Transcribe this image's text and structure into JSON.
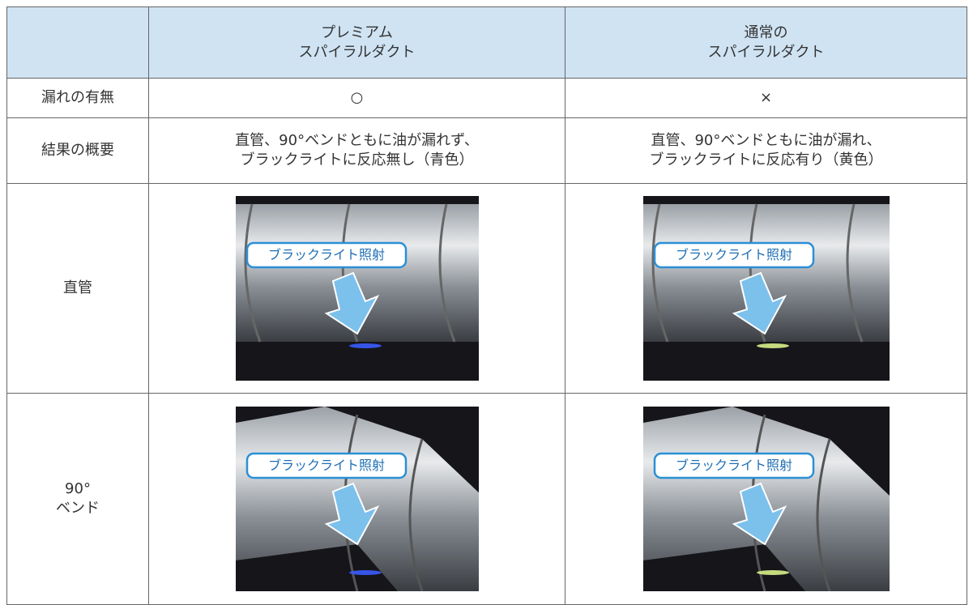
{
  "table": {
    "header": [
      {
        "lines": [
          "プレミアム",
          "スパイラルダクト"
        ]
      },
      {
        "lines": [
          "通常の",
          "スパイラルダクト"
        ]
      }
    ],
    "rows": [
      {
        "label": [
          "漏れの有無"
        ],
        "cells": [
          {
            "lines": [
              "○"
            ]
          },
          {
            "lines": [
              "×"
            ]
          }
        ]
      },
      {
        "label": [
          "結果の概要"
        ],
        "cells": [
          {
            "lines": [
              "直管、90°ベンドともに油が漏れず、",
              "ブラックライトに反応無し（青色）"
            ]
          },
          {
            "lines": [
              "直管、90°ベンドともに油が漏れ、",
              "ブラックライトに反応有り（黄色）"
            ]
          }
        ]
      },
      {
        "label": [
          "直管"
        ],
        "cells": [
          {
            "callout": "ブラックライト照射"
          },
          {
            "callout": "ブラックライト照射"
          }
        ]
      },
      {
        "label": [
          "90°",
          "ベンド"
        ],
        "cells": [
          {
            "callout": "ブラックライト照射"
          },
          {
            "callout": "ブラックライト照射"
          }
        ]
      }
    ]
  }
}
